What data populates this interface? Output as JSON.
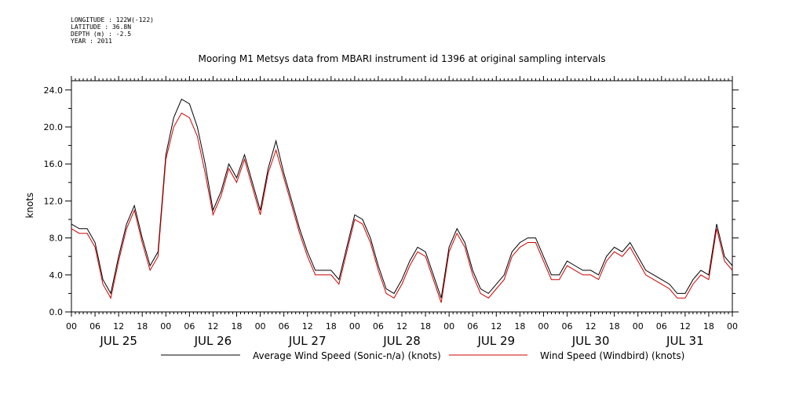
{
  "meta": [
    "LONGITUDE : 122W(-122)",
    "LATITUDE : 36.8N",
    "DEPTH (m) : -2.5",
    "YEAR : 2011"
  ],
  "chart_data": {
    "type": "line",
    "title": "Mooring M1 Metsys data from MBARI instrument id 1396 at original sampling intervals",
    "ylabel": "knots",
    "xlabel": "",
    "ylim": [
      0,
      25
    ],
    "xlim_hours": [
      0,
      168
    ],
    "yticks": [
      "0.0",
      "4.0",
      "8.0",
      "12.0",
      "16.0",
      "20.0",
      "24.0"
    ],
    "hour_ticks": [
      "00",
      "06",
      "12",
      "18",
      "00",
      "06",
      "12",
      "18",
      "00",
      "06",
      "12",
      "18",
      "00",
      "06",
      "12",
      "18",
      "00",
      "06",
      "12",
      "18",
      "00",
      "06",
      "12",
      "18",
      "00",
      "06",
      "12",
      "18",
      "00"
    ],
    "day_labels": [
      "JUL 25",
      "JUL 26",
      "JUL 27",
      "JUL 28",
      "JUL 29",
      "JUL 30",
      "JUL 31"
    ],
    "x_unit": "hours since JUL 25 00:00",
    "series": [
      {
        "name": "Average Wind Speed (Sonic-n/a) (knots)",
        "color": "#000000",
        "x": [
          0,
          2,
          4,
          6,
          8,
          10,
          12,
          14,
          16,
          18,
          20,
          22,
          24,
          26,
          28,
          30,
          32,
          34,
          36,
          38,
          40,
          42,
          44,
          46,
          48,
          50,
          52,
          54,
          56,
          58,
          60,
          62,
          64,
          66,
          68,
          70,
          72,
          74,
          76,
          78,
          80,
          82,
          84,
          86,
          88,
          90,
          92,
          94,
          96,
          98,
          100,
          102,
          104,
          106,
          108,
          110,
          112,
          114,
          116,
          118,
          120,
          122,
          124,
          126,
          128,
          130,
          132,
          134,
          136,
          138,
          140,
          142,
          144,
          146,
          148,
          150,
          152,
          154,
          156,
          158,
          160,
          162,
          164,
          166,
          168
        ],
        "values": [
          9.5,
          9,
          9,
          7.5,
          3.5,
          2,
          6,
          9.5,
          11.5,
          8,
          5,
          6.5,
          17,
          21,
          23,
          22.5,
          20,
          16,
          11,
          13,
          16,
          14.5,
          17,
          14,
          11,
          15.5,
          18.5,
          15,
          12,
          9,
          6.5,
          4.5,
          4.5,
          4.5,
          3.5,
          7,
          10.5,
          10,
          8,
          5,
          2.5,
          2,
          3.5,
          5.5,
          7,
          6.5,
          4,
          1.5,
          7,
          9,
          7.5,
          4.5,
          2.5,
          2,
          3,
          4,
          6.5,
          7.5,
          8,
          8,
          6,
          4,
          4,
          5.5,
          5,
          4.5,
          4.5,
          4,
          6,
          7,
          6.5,
          7.5,
          6,
          4.5,
          4,
          3.5,
          3,
          2,
          2,
          3.5,
          4.5,
          4,
          9.5,
          6,
          5
        ]
      },
      {
        "name": "Wind Speed (Windbird) (knots)",
        "color": "#d00000",
        "x": [
          0,
          2,
          4,
          6,
          8,
          10,
          12,
          14,
          16,
          18,
          20,
          22,
          24,
          26,
          28,
          30,
          32,
          34,
          36,
          38,
          40,
          42,
          44,
          46,
          48,
          50,
          52,
          54,
          56,
          58,
          60,
          62,
          64,
          66,
          68,
          70,
          72,
          74,
          76,
          78,
          80,
          82,
          84,
          86,
          88,
          90,
          92,
          94,
          96,
          98,
          100,
          102,
          104,
          106,
          108,
          110,
          112,
          114,
          116,
          118,
          120,
          122,
          124,
          126,
          128,
          130,
          132,
          134,
          136,
          138,
          140,
          142,
          144,
          146,
          148,
          150,
          152,
          154,
          156,
          158,
          160,
          162,
          164,
          166,
          168
        ],
        "values": [
          9,
          8.5,
          8.5,
          7,
          3,
          1.5,
          5.5,
          9,
          11,
          7.5,
          4.5,
          6,
          16.5,
          20,
          21.5,
          21,
          19,
          15,
          10.5,
          12.5,
          15.5,
          14,
          16.5,
          13.5,
          10.5,
          15,
          17.5,
          14.5,
          11.5,
          8.5,
          6,
          4,
          4,
          4,
          3,
          6.5,
          10,
          9.5,
          7.5,
          4.5,
          2,
          1.5,
          3,
          5,
          6.5,
          6,
          3.5,
          1,
          6.5,
          8.5,
          7,
          4,
          2,
          1.5,
          2.5,
          3.5,
          6,
          7,
          7.5,
          7.5,
          5.5,
          3.5,
          3.5,
          5,
          4.5,
          4,
          4,
          3.5,
          5.5,
          6.5,
          6,
          7,
          5.5,
          4,
          3.5,
          3,
          2.5,
          1.5,
          1.5,
          3,
          4,
          3.5,
          9,
          5.5,
          4.5
        ]
      }
    ]
  }
}
